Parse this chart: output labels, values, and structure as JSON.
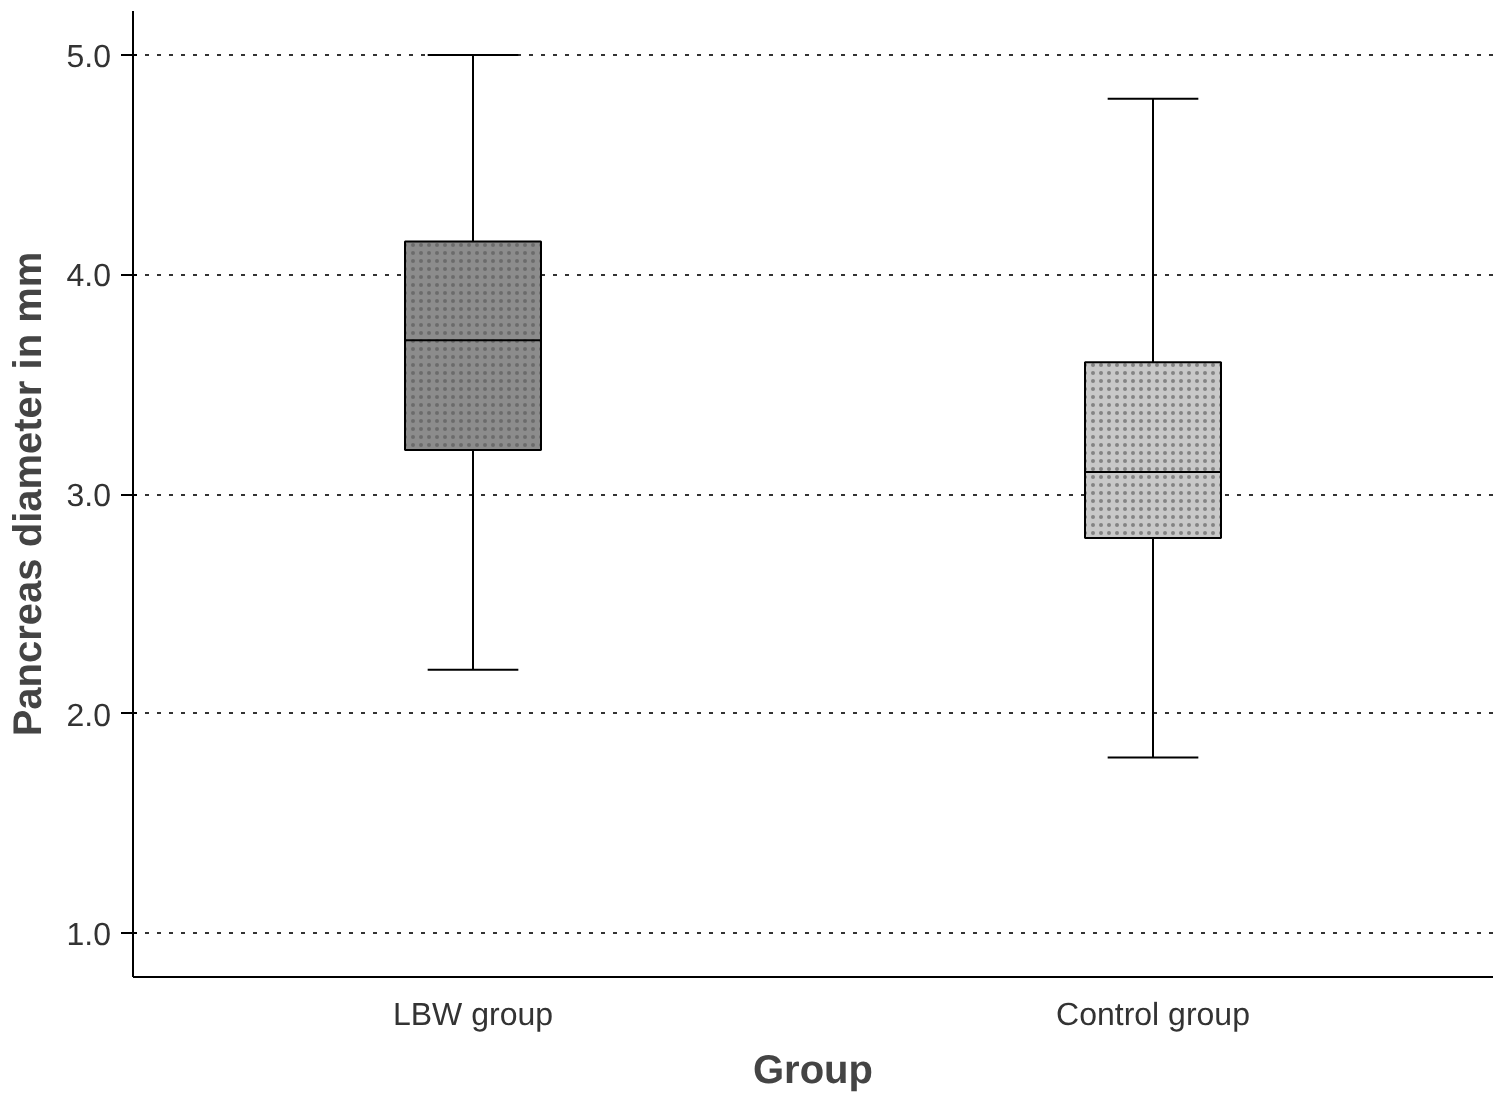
{
  "chart_data": {
    "type": "box",
    "xlabel": "Group",
    "ylabel": "Pancreas diameter in mm",
    "categories": [
      "LBW group",
      "Control group"
    ],
    "boxes": [
      {
        "low": 2.2,
        "q1": 3.2,
        "median": 3.7,
        "q3": 4.15,
        "high": 5.0
      },
      {
        "low": 1.8,
        "q1": 2.8,
        "median": 3.1,
        "q3": 3.6,
        "high": 4.8
      }
    ],
    "colors": [
      "#8c8c8c",
      "#c8c8c8"
    ],
    "ylim": [
      0.8,
      5.2
    ],
    "yticks": [
      {
        "value": 1,
        "label": "1.0"
      },
      {
        "value": 2,
        "label": "2.0"
      },
      {
        "value": 3,
        "label": "3.0"
      },
      {
        "value": 4,
        "label": "4.0"
      },
      {
        "value": 5,
        "label": "5.0"
      }
    ],
    "grid": "y"
  }
}
